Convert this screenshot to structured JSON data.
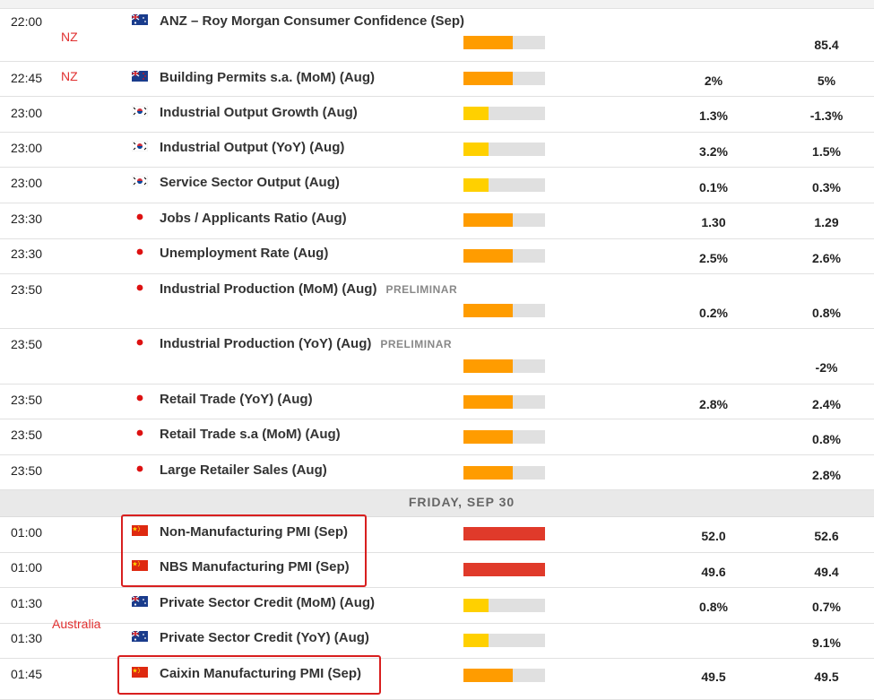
{
  "colors": {
    "impact_low": "#ffd000",
    "impact_medium": "#ff9c00",
    "impact_high": "#e03a2a",
    "annotation": "#e03030"
  },
  "annotations": {
    "nz_1": "NZ",
    "nz_2": "NZ",
    "australia": "Australia"
  },
  "day_separator": "FRIDAY, SEP 30",
  "events": [
    {
      "time": "22:00",
      "flag": "australia-flag-icon",
      "title": "ANZ – Roy Morgan Consumer Confidence (Sep)",
      "prelim": "",
      "impact": "medium",
      "previous": "",
      "actual": "85.4"
    },
    {
      "time": "22:45",
      "flag": "new-zealand-flag-icon",
      "title": "Building Permits s.a. (MoM) (Aug)",
      "prelim": "",
      "impact": "medium",
      "previous": "2%",
      "actual": "5%"
    },
    {
      "time": "23:00",
      "flag": "south-korea-flag-icon",
      "title": "Industrial Output Growth (Aug)",
      "prelim": "",
      "impact": "low",
      "previous": "1.3%",
      "actual": "-1.3%"
    },
    {
      "time": "23:00",
      "flag": "south-korea-flag-icon",
      "title": "Industrial Output (YoY) (Aug)",
      "prelim": "",
      "impact": "low",
      "previous": "3.2%",
      "actual": "1.5%"
    },
    {
      "time": "23:00",
      "flag": "south-korea-flag-icon",
      "title": "Service Sector Output (Aug)",
      "prelim": "",
      "impact": "low",
      "previous": "0.1%",
      "actual": "0.3%"
    },
    {
      "time": "23:30",
      "flag": "japan-flag-icon",
      "title": "Jobs / Applicants Ratio (Aug)",
      "prelim": "",
      "impact": "medium",
      "previous": "1.30",
      "actual": "1.29"
    },
    {
      "time": "23:30",
      "flag": "japan-flag-icon",
      "title": "Unemployment Rate (Aug)",
      "prelim": "",
      "impact": "medium",
      "previous": "2.5%",
      "actual": "2.6%"
    },
    {
      "time": "23:50",
      "flag": "japan-flag-icon",
      "title": "Industrial Production (MoM) (Aug)",
      "prelim": "PRELIMINAR",
      "impact": "medium",
      "previous": "0.2%",
      "actual": "0.8%"
    },
    {
      "time": "23:50",
      "flag": "japan-flag-icon",
      "title": "Industrial Production (YoY) (Aug)",
      "prelim": "PRELIMINAR",
      "impact": "medium",
      "previous": "",
      "actual": "-2%"
    },
    {
      "time": "23:50",
      "flag": "japan-flag-icon",
      "title": "Retail Trade (YoY) (Aug)",
      "prelim": "",
      "impact": "medium",
      "previous": "2.8%",
      "actual": "2.4%"
    },
    {
      "time": "23:50",
      "flag": "japan-flag-icon",
      "title": "Retail Trade s.a (MoM) (Aug)",
      "prelim": "",
      "impact": "medium",
      "previous": "",
      "actual": "0.8%"
    },
    {
      "time": "23:50",
      "flag": "japan-flag-icon",
      "title": "Large Retailer Sales (Aug)",
      "prelim": "",
      "impact": "medium",
      "previous": "",
      "actual": "2.8%"
    },
    {
      "time": "01:00",
      "flag": "china-flag-icon",
      "title": "Non-Manufacturing PMI (Sep)",
      "prelim": "",
      "impact": "high",
      "previous": "52.0",
      "actual": "52.6"
    },
    {
      "time": "01:00",
      "flag": "china-flag-icon",
      "title": "NBS Manufacturing PMI (Sep)",
      "prelim": "",
      "impact": "high",
      "previous": "49.6",
      "actual": "49.4"
    },
    {
      "time": "01:30",
      "flag": "australia-flag-icon",
      "title": "Private Sector Credit (MoM) (Aug)",
      "prelim": "",
      "impact": "low",
      "previous": "0.8%",
      "actual": "0.7%"
    },
    {
      "time": "01:30",
      "flag": "australia-flag-icon",
      "title": "Private Sector Credit (YoY) (Aug)",
      "prelim": "",
      "impact": "low",
      "previous": "",
      "actual": "9.1%"
    },
    {
      "time": "01:45",
      "flag": "china-flag-icon",
      "title": "Caixin Manufacturing PMI (Sep)",
      "prelim": "",
      "impact": "medium",
      "previous": "49.5",
      "actual": "49.5"
    }
  ]
}
